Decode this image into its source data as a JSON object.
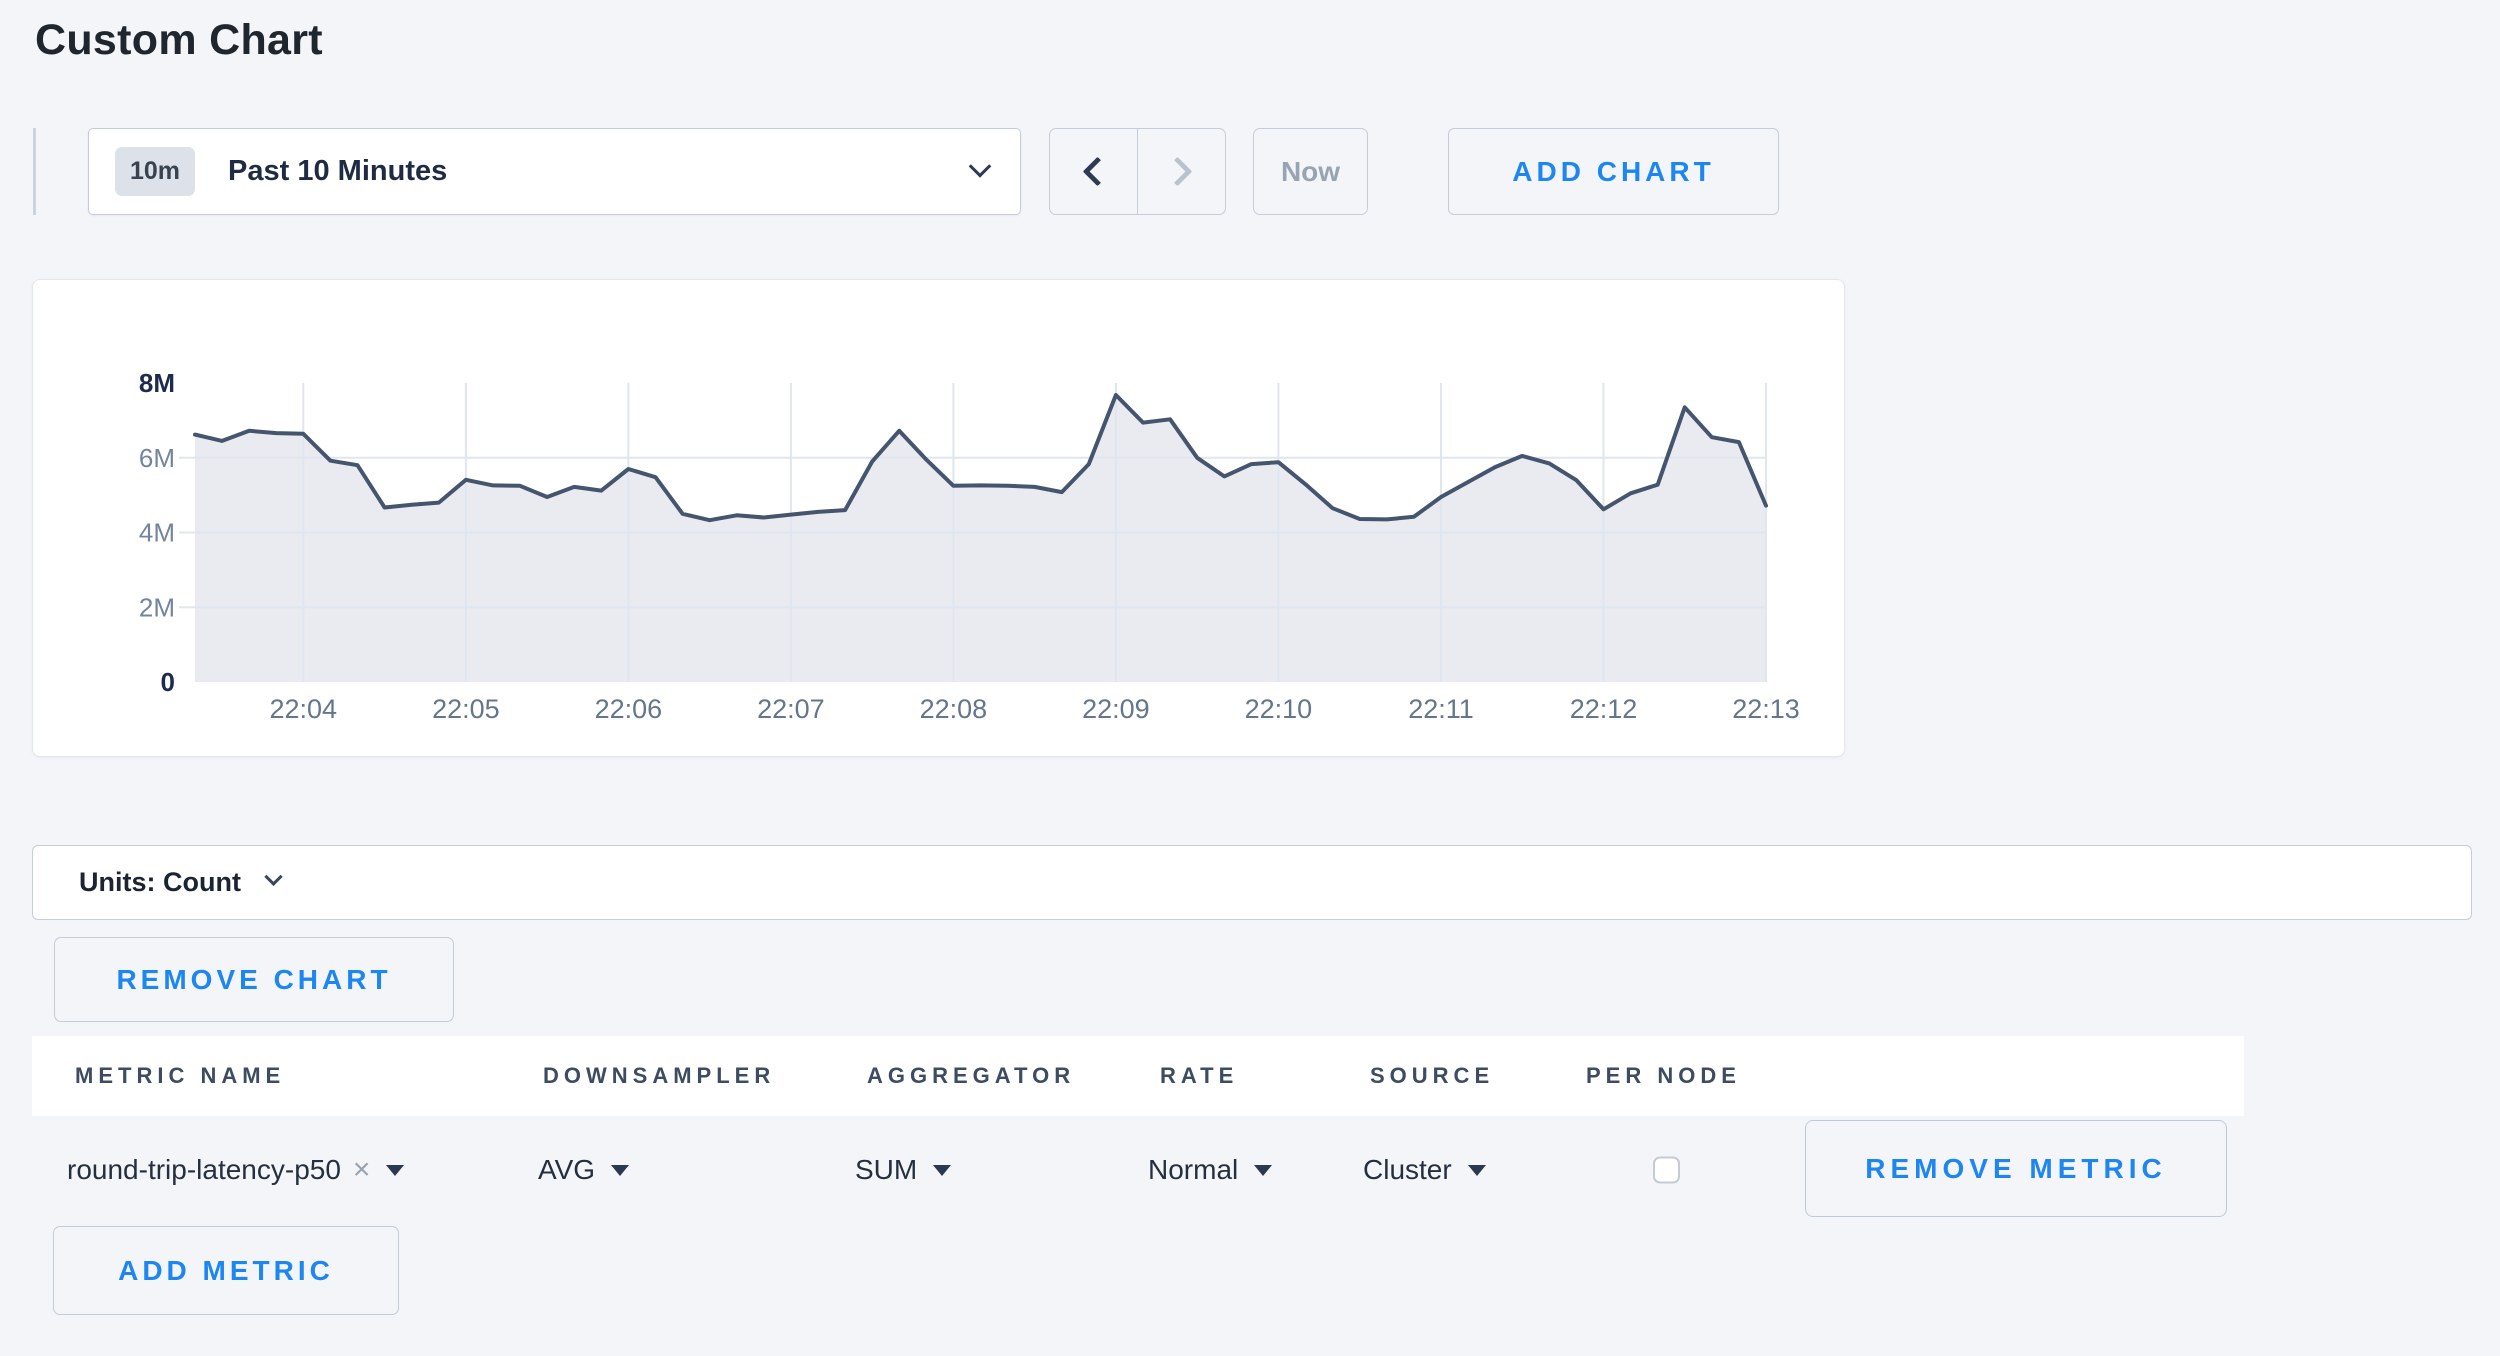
{
  "page": {
    "title": "Custom Chart"
  },
  "toolbar": {
    "time_range": {
      "badge": "10m",
      "label": "Past 10 Minutes"
    },
    "now_label": "Now",
    "add_chart_label": "ADD CHART"
  },
  "chart_data": {
    "type": "area",
    "title": "",
    "start_time": "22:03:20",
    "interval_seconds": 10,
    "duration_seconds": 580,
    "y_max": 8000000,
    "ylim": [
      0,
      8000000
    ],
    "grid": true,
    "legend_position": "none",
    "series": [
      {
        "name": "round-trip-latency-p50",
        "values": [
          6620000,
          6450000,
          6720000,
          6660000,
          6640000,
          5920000,
          5800000,
          4670000,
          4740000,
          4800000,
          5410000,
          5260000,
          5250000,
          4950000,
          5220000,
          5120000,
          5700000,
          5480000,
          4500000,
          4330000,
          4460000,
          4400000,
          4480000,
          4550000,
          4600000,
          5900000,
          6720000,
          5950000,
          5250000,
          5260000,
          5250000,
          5220000,
          5080000,
          5830000,
          7680000,
          6940000,
          7030000,
          6000000,
          5500000,
          5830000,
          5880000,
          5290000,
          4650000,
          4360000,
          4350000,
          4420000,
          4950000,
          5350000,
          5750000,
          6050000,
          5850000,
          5400000,
          4620000,
          5050000,
          5280000,
          7350000,
          6550000,
          6420000,
          4720000
        ]
      }
    ],
    "x_ticks": [
      {
        "label": "22:04",
        "t": 40
      },
      {
        "label": "22:05",
        "t": 100
      },
      {
        "label": "22:06",
        "t": 160
      },
      {
        "label": "22:07",
        "t": 220
      },
      {
        "label": "22:08",
        "t": 280
      },
      {
        "label": "22:09",
        "t": 340
      },
      {
        "label": "22:10",
        "t": 400
      },
      {
        "label": "22:11",
        "t": 460
      },
      {
        "label": "22:12",
        "t": 520
      },
      {
        "label": "22:13",
        "t": 580
      }
    ],
    "y_ticks": [
      {
        "label": "0",
        "value": 0,
        "emphasis": true,
        "grid": false
      },
      {
        "label": "2M",
        "value": 2000000,
        "emphasis": false,
        "grid": true
      },
      {
        "label": "4M",
        "value": 4000000,
        "emphasis": false,
        "grid": true
      },
      {
        "label": "6M",
        "value": 6000000,
        "emphasis": false,
        "grid": true
      },
      {
        "label": "8M",
        "value": 8000000,
        "emphasis": true,
        "grid": false
      }
    ],
    "line_color": "#45556e",
    "fill_color": "#e9ebf1",
    "grid_color": "#e0e6ef",
    "tick_color": "#64758c",
    "tick_emphasis_color": "#1d2b4d"
  },
  "units_bar": {
    "label": "Units: Count"
  },
  "chart_actions": {
    "remove_chart_label": "REMOVE CHART"
  },
  "metrics_table": {
    "columns": [
      "METRIC NAME",
      "DOWNSAMPLER",
      "AGGREGATOR",
      "RATE",
      "SOURCE",
      "PER NODE"
    ],
    "rows": [
      {
        "metric_name": "round-trip-latency-p50",
        "clear_icon": "×",
        "downsampler": "AVG",
        "aggregator": "SUM",
        "rate": "Normal",
        "source": "Cluster",
        "per_node_checked": false,
        "remove_label": "REMOVE METRIC"
      }
    ],
    "add_metric_label": "ADD METRIC"
  },
  "colors": {
    "accent_blue": "#1d86f0",
    "page_background": "#f4f5f9"
  }
}
